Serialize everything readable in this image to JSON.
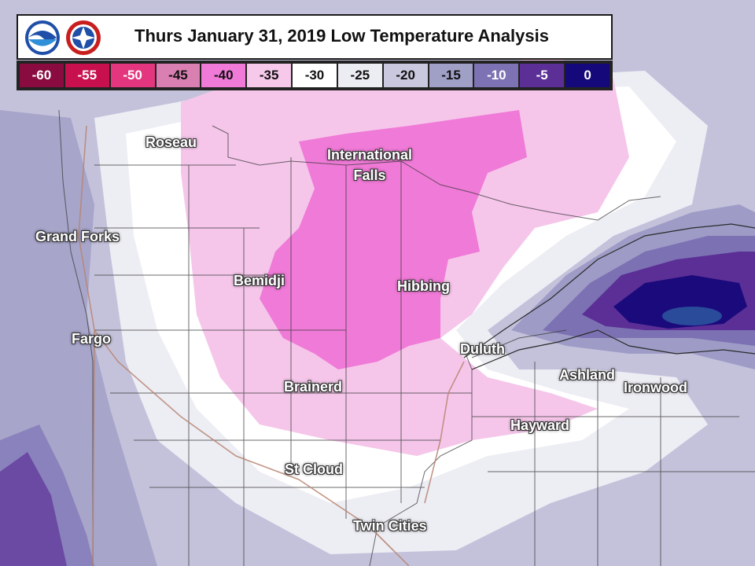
{
  "title": "Thurs January 31, 2019 Low Temperature Analysis",
  "logos": [
    {
      "name": "noaa",
      "text": "NOAA"
    },
    {
      "name": "nws",
      "text": "NATIONAL WEATHER SERVICE"
    }
  ],
  "legend": [
    {
      "label": "-60",
      "color": "#8a0b3f",
      "text": "#ffffff"
    },
    {
      "label": "-55",
      "color": "#c8104f",
      "text": "#ffffff"
    },
    {
      "label": "-50",
      "color": "#e4367f",
      "text": "#ffffff"
    },
    {
      "label": "-45",
      "color": "#d97fb1",
      "text": "#111111"
    },
    {
      "label": "-40",
      "color": "#f07ad7",
      "text": "#111111"
    },
    {
      "label": "-35",
      "color": "#f6c8ea",
      "text": "#111111"
    },
    {
      "label": "-30",
      "color": "#ffffff",
      "text": "#111111"
    },
    {
      "label": "-25",
      "color": "#ececf3",
      "text": "#111111"
    },
    {
      "label": "-20",
      "color": "#c9c8de",
      "text": "#111111"
    },
    {
      "label": "-15",
      "color": "#a09fc6",
      "text": "#111111"
    },
    {
      "label": "-10",
      "color": "#7d73b4",
      "text": "#ffffff"
    },
    {
      "label": "-5",
      "color": "#5b2f96",
      "text": "#ffffff"
    },
    {
      "label": "0",
      "color": "#15087a",
      "text": "#ffffff"
    }
  ],
  "cities": {
    "roseau": "Roseau",
    "international_falls_1": "International",
    "international_falls_2": "Falls",
    "grand_forks": "Grand Forks",
    "bemidji": "Bemidji",
    "hibbing": "Hibbing",
    "fargo": "Fargo",
    "duluth": "Duluth",
    "ashland": "Ashland",
    "ironwood": "Ironwood",
    "brainerd": "Brainerd",
    "hayward": "Hayward",
    "st_cloud": "St Cloud",
    "twin_cities": "Twin Cities"
  }
}
